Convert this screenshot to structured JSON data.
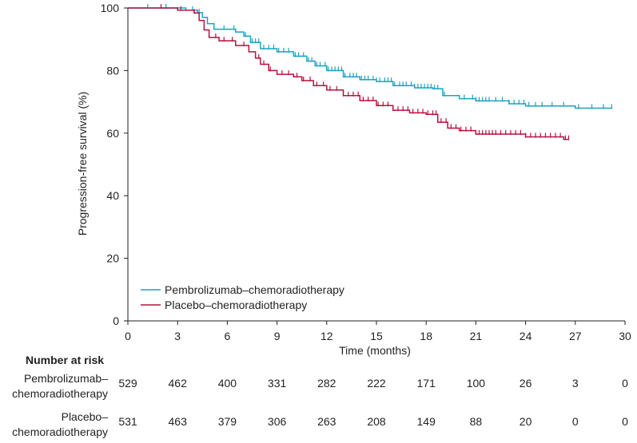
{
  "chart_data": {
    "type": "line",
    "subtype": "kaplan-meier",
    "xlabel": "Time (months)",
    "ylabel": "Progression-free survival (%)",
    "xlim": [
      0,
      30
    ],
    "ylim": [
      0,
      100
    ],
    "xticks": [
      0,
      3,
      6,
      9,
      12,
      15,
      18,
      21,
      24,
      27,
      30
    ],
    "yticks": [
      0,
      20,
      40,
      60,
      80,
      100
    ],
    "grid": false,
    "legend_position": "lower-left",
    "series": [
      {
        "name": "Pembrolizumab–chemoradiotherapy",
        "color": "#1aa3c4",
        "steps": [
          [
            0,
            100
          ],
          [
            1.5,
            100
          ],
          [
            3.5,
            99.3
          ],
          [
            4.2,
            98.5
          ],
          [
            4.5,
            97
          ],
          [
            4.8,
            95
          ],
          [
            5.2,
            93.2
          ],
          [
            6.5,
            92.3
          ],
          [
            7,
            91
          ],
          [
            7.4,
            89
          ],
          [
            8,
            87
          ],
          [
            9,
            86
          ],
          [
            10,
            84.6
          ],
          [
            10.8,
            83
          ],
          [
            11.3,
            81.5
          ],
          [
            12,
            80
          ],
          [
            13,
            78
          ],
          [
            14,
            77.1
          ],
          [
            15,
            76.5
          ],
          [
            16,
            75.2
          ],
          [
            17.3,
            74.5
          ],
          [
            18.4,
            74.2
          ],
          [
            19,
            72
          ],
          [
            20,
            71
          ],
          [
            21,
            70.3
          ],
          [
            23,
            69.4
          ],
          [
            24,
            68.7
          ],
          [
            27,
            68
          ],
          [
            29.2,
            68
          ]
        ],
        "censor_times": [
          1.2,
          2.3,
          3.9,
          4.3,
          5.8,
          6.4,
          7.1,
          7.5,
          7.7,
          7.9,
          8.2,
          8.5,
          8.8,
          9.1,
          9.4,
          9.7,
          10.1,
          10.3,
          10.6,
          10.9,
          11.1,
          11.4,
          11.6,
          11.9,
          12.1,
          12.3,
          12.5,
          12.7,
          12.9,
          13.1,
          13.4,
          13.6,
          13.8,
          14.1,
          14.3,
          14.5,
          14.8,
          15.0,
          15.2,
          15.5,
          15.7,
          15.9,
          16.1,
          16.4,
          16.6,
          16.8,
          17.1,
          17.3,
          17.5,
          17.7,
          17.9,
          18.1,
          18.3,
          18.5,
          18.7,
          19.1,
          20.3,
          20.8,
          21.0,
          21.2,
          21.4,
          21.6,
          21.8,
          22.2,
          22.6,
          23.0,
          23.3,
          23.6,
          23.9,
          24.2,
          24.6,
          25.0,
          25.6,
          26.3,
          27.2,
          28.0,
          28.7,
          29.2
        ]
      },
      {
        "name": "Placebo–chemoradiotherapy",
        "color": "#b5123f",
        "steps": [
          [
            0,
            100
          ],
          [
            1.5,
            100
          ],
          [
            3,
            99.3
          ],
          [
            4,
            98.4
          ],
          [
            4.3,
            96
          ],
          [
            4.6,
            93
          ],
          [
            4.9,
            90.6
          ],
          [
            5.5,
            89.5
          ],
          [
            6.5,
            88
          ],
          [
            7.3,
            86
          ],
          [
            7.7,
            84
          ],
          [
            8,
            82
          ],
          [
            8.5,
            80
          ],
          [
            9,
            78.8
          ],
          [
            10,
            78
          ],
          [
            10.5,
            76.8
          ],
          [
            11.2,
            75.2
          ],
          [
            12,
            73.8
          ],
          [
            13,
            72
          ],
          [
            14,
            70.4
          ],
          [
            15,
            68.8
          ],
          [
            16,
            67.3
          ],
          [
            17,
            66.5
          ],
          [
            18,
            66
          ],
          [
            18.7,
            63.5
          ],
          [
            19.3,
            61.6
          ],
          [
            20,
            60.8
          ],
          [
            21,
            59.7
          ],
          [
            24,
            58.8
          ],
          [
            26.3,
            58
          ],
          [
            26.6,
            58
          ]
        ],
        "censor_times": [
          2.0,
          3.2,
          4.0,
          5.3,
          5.8,
          6.3,
          7.0,
          7.9,
          8.2,
          8.6,
          9.3,
          9.7,
          10.2,
          10.6,
          11.0,
          11.4,
          11.8,
          12.2,
          12.6,
          13.0,
          13.3,
          13.6,
          13.9,
          14.2,
          14.5,
          14.8,
          15.1,
          15.4,
          15.7,
          16.0,
          16.3,
          16.6,
          16.9,
          17.2,
          17.5,
          17.8,
          18.1,
          18.4,
          18.6,
          18.9,
          19.2,
          19.5,
          19.8,
          20.1,
          20.4,
          20.7,
          21.0,
          21.2,
          21.4,
          21.6,
          21.8,
          22.0,
          22.2,
          22.5,
          22.8,
          23.1,
          23.4,
          23.7,
          24.0,
          24.3,
          24.6,
          24.9,
          25.2,
          25.5,
          25.8,
          26.1,
          26.4,
          26.6
        ]
      }
    ],
    "risk_table": {
      "title": "Number at risk",
      "times": [
        0,
        3,
        6,
        9,
        12,
        15,
        18,
        21,
        24,
        27,
        30
      ],
      "rows": [
        {
          "label_line1": "Pembrolizumab–",
          "label_line2": "chemoradiotherapy",
          "values": [
            529,
            462,
            400,
            331,
            282,
            222,
            171,
            100,
            26,
            3,
            0
          ]
        },
        {
          "label_line1": "Placebo–",
          "label_line2": "chemoradiotherapy",
          "values": [
            531,
            463,
            379,
            306,
            263,
            208,
            149,
            88,
            20,
            0,
            0
          ]
        }
      ]
    }
  }
}
